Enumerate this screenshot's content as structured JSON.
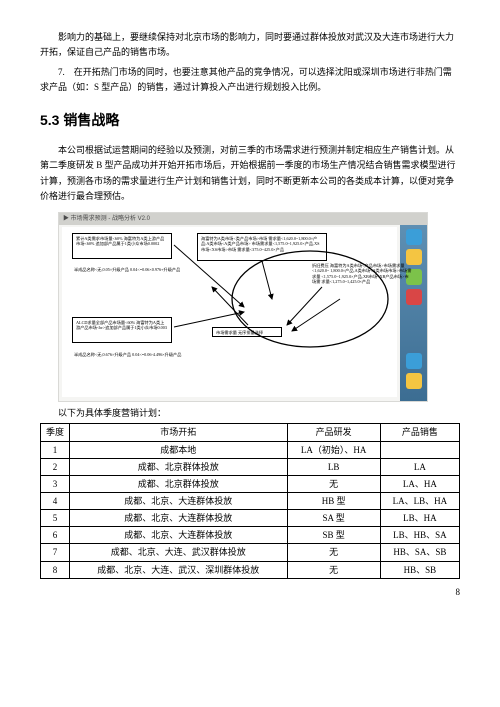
{
  "paragraphs": {
    "p1": "影响力的基础上，要继续保持对北京市场的影响力，同时要通过群体投放对武汉及大连市场进行大力开拓，保证自己产品的销售市场。",
    "p2": "7.　在开拓热门市场的同时，也要注意其他产品的竞争情况，可以选择沈阳或深圳市场进行非热门需求产品（如：S 型产品）的销售，通过计算投入产出进行规划投入比例。"
  },
  "heading": "5.3 销售战略",
  "p3": "本公司根据试运营期间的经验以及预测，对前三季的市场需求进行预测并制定相应生产销售计划。从第二季度研发 B 型产品成功并开始开拓市场后，开始根据前一季度的市场生产情况结合销售需求模型进行计算，预测各市场的需求量进行生产计划和销售计划，同时不断更新本公司的各类成本计算，以便对竞争价格进行最合理预估。",
  "figure": {
    "caption": "▶ 市场需求预测 - 战略分析 V2.0",
    "boxA": "累计A类需求市场量<60%\n海富特为A类上游产品市场<60%\n追加部产品属于1类小众市场0.0002",
    "boxA_sub": "半成品名称<无,0.05×升级产品\n0.04<=0.06×0.976+升级产品",
    "boxB": "ALCD求量全部产品市场量<60%\n海富特为A类上游产品市场<br>追加部产品属于1类小众市场0.003",
    "boxC": "海富特为A类市场<类产品市场>市场\n需求量<1,620.0~1,800.0×产品;A类市场<A类产品市场>\n市场需求量<1,575.0~1,925.0×产品,XS市场<XS市场>市场\n需求量<375.0~425.0×产品",
    "boxD": "市场需求量 无序排量选择",
    "txtE": "折旧费压\n海富特为A类市场<产品市场>市场需求量<1,620.0~\n1,800.0×产品,A类市场<A类市场市场>市场需求量\n<1,575.0~1,925.0×产品,XB市场<XB产品市场>市场需\n求量<1,275.0~1,425.0×产品",
    "boxC_sub": "半成品名称<无,0.676×升级产品\n0.04<=0.06-4.496×升级产品"
  },
  "table": {
    "caption": "以下为具体季度营销计划：",
    "headers": [
      "季度",
      "市场开拓",
      "产品研发",
      "产品销售"
    ],
    "rows": [
      [
        "1",
        "成都本地",
        "LA（初始）、HA",
        ""
      ],
      [
        "2",
        "成都、北京群体投放",
        "LB",
        "LA"
      ],
      [
        "3",
        "成都、北京群体投放",
        "无",
        "LA、HA"
      ],
      [
        "4",
        "成都、北京、大连群体投放",
        "HB 型",
        "LA、LB、HA"
      ],
      [
        "5",
        "成都、北京、大连群体投放",
        "SA 型",
        "LB、HA"
      ],
      [
        "6",
        "成都、北京、大连群体投放",
        "SB 型",
        "LB、HB、SA"
      ],
      [
        "7",
        "成都、北京、大连、武汉群体投放",
        "无",
        "HB、SA、SB"
      ],
      [
        "8",
        "成都、北京、大连、武汉、深圳群体投放",
        "无",
        "HB、SB"
      ]
    ]
  },
  "page_number": "8"
}
